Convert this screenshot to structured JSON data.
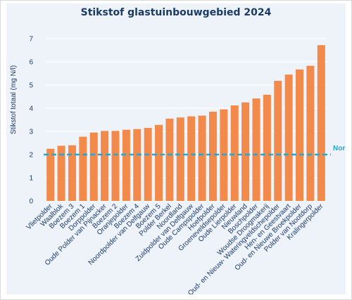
{
  "chart_data": {
    "type": "bar",
    "title": "Stikstof glastuinbouwgebied 2024",
    "xlabel": "",
    "ylabel": "Stikstof totaal (mg N/l)",
    "ylim": [
      0,
      7
    ],
    "yticks": [
      0,
      1,
      2,
      3,
      4,
      5,
      6,
      7
    ],
    "grid": true,
    "categories": [
      "Vlietpolder",
      "Waalblok",
      "Boezem 3",
      "Boezem 1",
      "Dorppolder",
      "Oude Polder van Pijnacker",
      "Boezem 2",
      "Oranjepolder",
      "Boezem 4",
      "Noordpolder van Delfgauw",
      "Boezem 5",
      "Polder Berkel",
      "Noordland",
      "Zuidpolder van Delfgauw",
      "Oude Campspolder",
      "Hoefpolder",
      "Groeneveldsepolder",
      "Oude Lierpolder",
      "Nieuwland",
      "Boschpolder",
      "Woudse Droogmakerij",
      "Oud- en Nieuw- Wateringveldschepolder",
      "Hen- en Geestvaart",
      "Oud- en Nieuwe Broekpolder",
      "Polder van Nootdorp",
      "Kralingerpolder"
    ],
    "values": [
      2.25,
      2.38,
      2.4,
      2.77,
      2.95,
      3.02,
      3.02,
      3.07,
      3.1,
      3.15,
      3.28,
      3.55,
      3.6,
      3.65,
      3.68,
      3.85,
      3.95,
      4.12,
      4.25,
      4.42,
      4.58,
      5.18,
      5.45,
      5.67,
      5.83,
      6.72
    ],
    "reference_line": {
      "label": "Norm",
      "value": 2.0
    },
    "colors": {
      "bar": "#f28a4b",
      "norm": "#1fa8d8",
      "panel": "#eef3f9",
      "grid": "#ffffff",
      "text": "#1a3a68"
    }
  }
}
